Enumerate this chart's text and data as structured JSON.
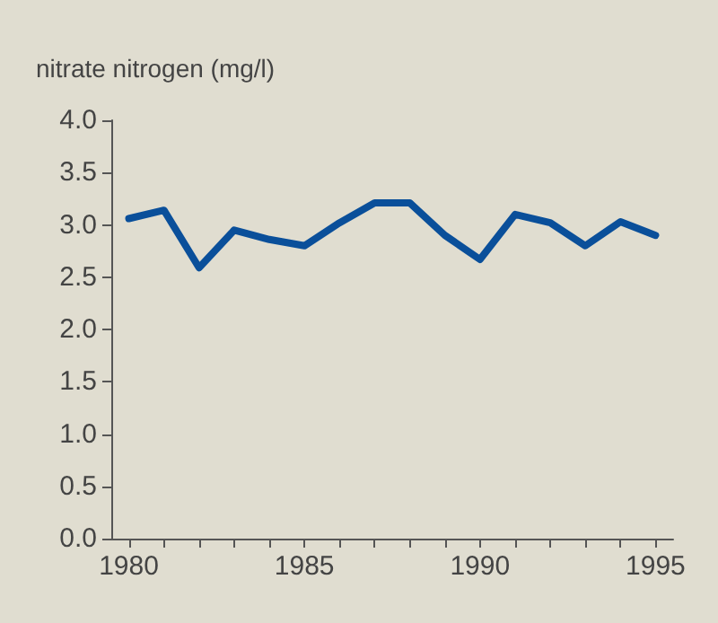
{
  "chart_data": {
    "type": "line",
    "ylabel": "nitrate nitrogen (mg/l)",
    "x": [
      1980,
      1981,
      1982,
      1983,
      1984,
      1985,
      1986,
      1987,
      1988,
      1989,
      1990,
      1991,
      1992,
      1993,
      1994,
      1995
    ],
    "series": [
      {
        "color": "#0a4f9a",
        "values": [
          3.06,
          3.14,
          2.59,
          2.95,
          2.86,
          2.8,
          3.02,
          3.21,
          3.21,
          2.9,
          2.67,
          3.1,
          3.02,
          2.8,
          3.03,
          2.9
        ]
      }
    ],
    "xlim": [
      1979.5,
      1995.5
    ],
    "xticks": [
      1980,
      {
        "value": 1981,
        "label": null
      },
      {
        "value": 1982,
        "label": null
      },
      {
        "value": 1983,
        "label": null
      },
      {
        "value": 1984,
        "label": null
      },
      1985,
      {
        "value": 1986,
        "label": null
      },
      {
        "value": 1987,
        "label": null
      },
      {
        "value": 1988,
        "label": null
      },
      {
        "value": 1989,
        "label": null
      },
      1990,
      {
        "value": 1991,
        "label": null
      },
      {
        "value": 1992,
        "label": null
      },
      {
        "value": 1993,
        "label": null
      },
      {
        "value": 1994,
        "label": null
      },
      1995
    ],
    "ylim": [
      0,
      4
    ],
    "yticks": [
      {
        "value": 0,
        "label": "0.0"
      },
      0.5,
      {
        "value": 1,
        "label": "1.0"
      },
      1.5,
      {
        "value": 2,
        "label": "2.0"
      },
      2.5,
      {
        "value": 3,
        "label": "3.0"
      },
      3.5,
      {
        "value": 4,
        "label": "4.0"
      }
    ],
    "grid": false,
    "marker": "none",
    "line_style": "solid"
  }
}
